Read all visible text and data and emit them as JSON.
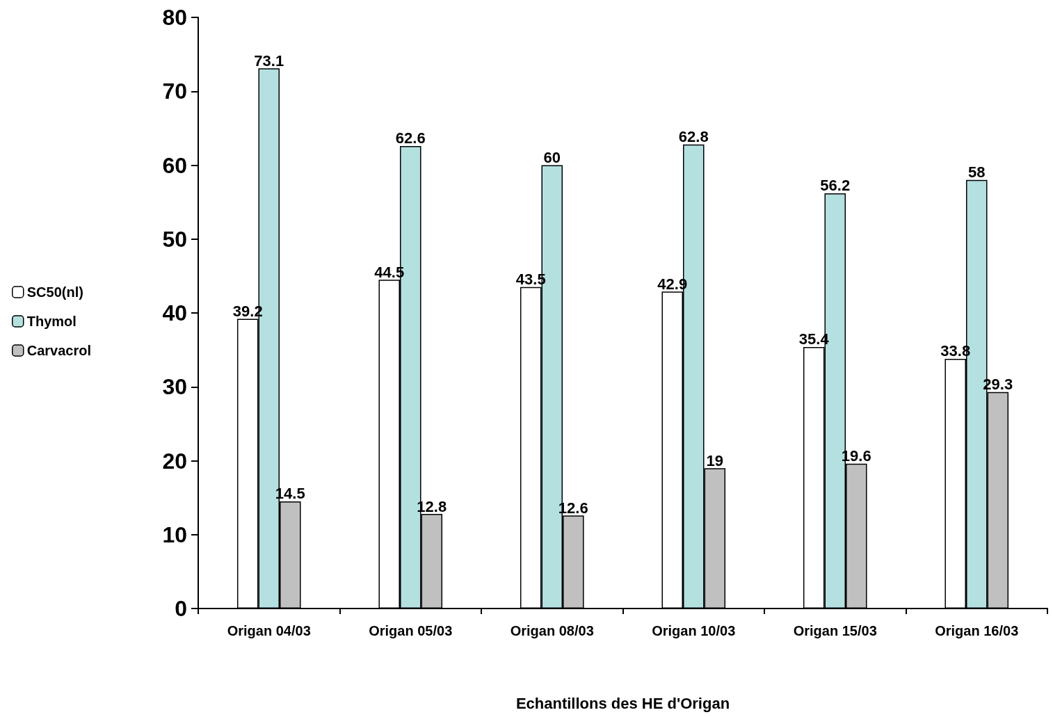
{
  "chart_data": {
    "type": "bar",
    "xlabel": "Echantillons des HE d'Origan",
    "categories": [
      "Origan 04/03",
      "Origan 05/03",
      "Origan 08/03",
      "Origan 10/03",
      "Origan 15/03",
      "Origan 16/03"
    ],
    "series": [
      {
        "name": "SC50(nl)",
        "color": "#ffffff",
        "values": [
          39.2,
          44.5,
          43.5,
          42.9,
          35.4,
          33.8
        ]
      },
      {
        "name": "Thymol",
        "color": "#b4e0e0",
        "values": [
          73.1,
          62.6,
          60,
          62.8,
          56.2,
          58
        ]
      },
      {
        "name": "Carvacrol",
        "color": "#c0c0c0",
        "values": [
          14.5,
          12.8,
          12.6,
          19,
          19.6,
          29.3
        ]
      }
    ],
    "ylim": [
      0,
      80
    ],
    "yticks": [
      0,
      10,
      20,
      30,
      40,
      50,
      60,
      70,
      80
    ],
    "data_labels": true,
    "grid": false,
    "legend": "left"
  }
}
